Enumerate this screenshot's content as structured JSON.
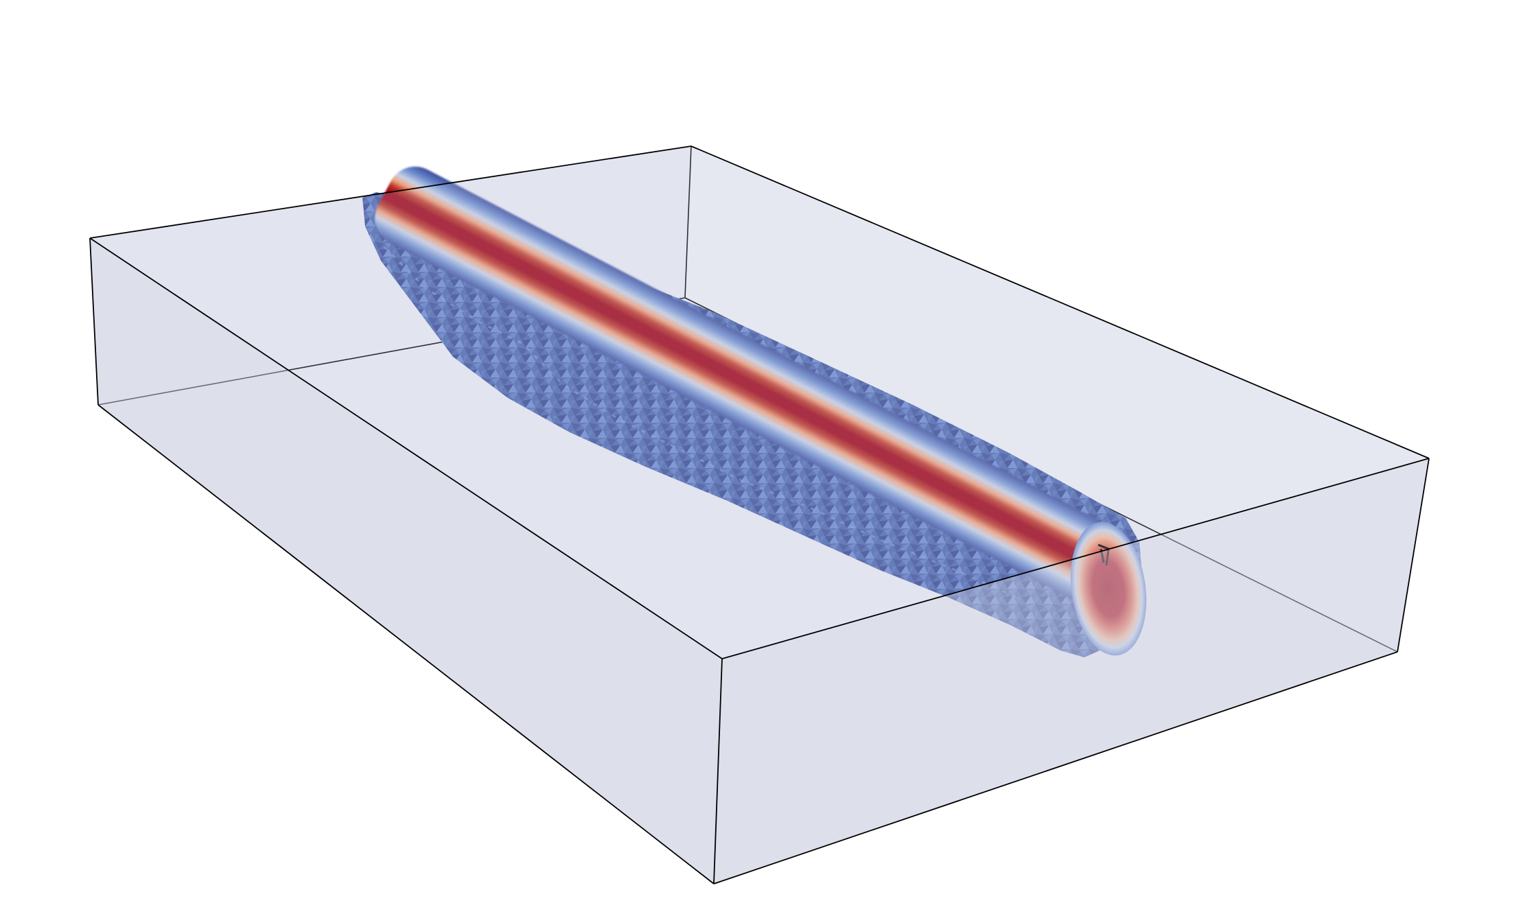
{
  "scene": {
    "kind": "3d-render",
    "background": "#ffffff",
    "domain_box": {
      "face_color": "#d3d6e6",
      "edge_color": "#000000"
    },
    "field_object": {
      "shape": "elongated-tube",
      "colormap": [
        "#3b4c9c",
        "#6f8fd0",
        "#c8d2e6",
        "#f0a37e",
        "#c0392b",
        "#9e0614"
      ],
      "core_color": "#9e0614",
      "rim_color": "#3b4c9c"
    },
    "probe_marker": {
      "color": "#000000"
    }
  }
}
